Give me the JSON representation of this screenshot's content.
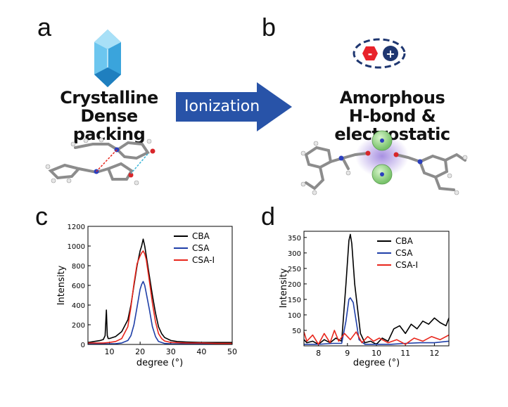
{
  "panel_labels": {
    "a": "a",
    "b": "b",
    "c": "c",
    "d": "d"
  },
  "panel_a": {
    "line1": "Crystalline",
    "line2": "Dense packing"
  },
  "arrow": {
    "label": "Ionization"
  },
  "panel_b": {
    "line1": "Amorphous",
    "line2": "H-bond & electrostatic",
    "anion_symbol": "-",
    "cation_symbol": "+"
  },
  "colors": {
    "CBA": "#000000",
    "CSA": "#1f3fa8",
    "CSA-I": "#e8261c",
    "arrow": "#2853a8",
    "crystal": "#3aa4dc",
    "anion": "#e8222a",
    "cation": "#1e3670"
  },
  "chart_data": [
    {
      "type": "line",
      "xlabel": "degree (°)",
      "ylabel": "Intensity",
      "xlim": [
        3,
        50
      ],
      "ylim": [
        0,
        1200
      ],
      "xticks": [
        10,
        20,
        30,
        40,
        50
      ],
      "yticks": [
        0,
        200,
        400,
        600,
        800,
        1000,
        1200
      ],
      "legend": "top-right",
      "series": [
        {
          "name": "CBA",
          "x": [
            3,
            5,
            7,
            8,
            8.6,
            9,
            9.3,
            9.6,
            10,
            12,
            14,
            16,
            17,
            18,
            19,
            20,
            20.5,
            21,
            21.5,
            22,
            23,
            24,
            25,
            26,
            27,
            28,
            30,
            32,
            35,
            40,
            45,
            50
          ],
          "y": [
            20,
            30,
            40,
            50,
            90,
            350,
            90,
            60,
            60,
            80,
            130,
            250,
            400,
            600,
            800,
            950,
            1000,
            1070,
            1000,
            900,
            700,
            500,
            320,
            180,
            110,
            70,
            40,
            30,
            25,
            20,
            20,
            20
          ]
        },
        {
          "name": "CSA",
          "x": [
            3,
            8,
            12,
            14,
            16,
            17,
            18,
            19,
            20,
            20.5,
            21,
            21.5,
            22,
            23,
            24,
            25,
            26,
            28,
            30,
            35,
            40,
            50
          ],
          "y": [
            5,
            5,
            8,
            15,
            40,
            90,
            200,
            380,
            560,
            610,
            640,
            600,
            520,
            360,
            180,
            80,
            30,
            10,
            6,
            5,
            5,
            5
          ]
        },
        {
          "name": "CSA-I",
          "x": [
            3,
            5,
            8,
            10,
            12,
            14,
            16,
            17,
            18,
            19,
            20,
            20.5,
            21,
            21.5,
            22,
            23,
            24,
            25,
            26,
            27,
            28,
            30,
            35,
            40,
            45,
            50
          ],
          "y": [
            15,
            15,
            15,
            20,
            30,
            60,
            180,
            380,
            620,
            820,
            900,
            930,
            950,
            920,
            860,
            650,
            420,
            230,
            110,
            60,
            35,
            20,
            15,
            15,
            10,
            10
          ]
        }
      ]
    },
    {
      "type": "line",
      "xlabel": "degree (°)",
      "ylabel": "Intensity",
      "xlim": [
        7.5,
        12.5
      ],
      "ylim": [
        0,
        370
      ],
      "xticks": [
        8,
        9,
        10,
        11,
        12
      ],
      "yticks": [
        50,
        100,
        150,
        200,
        250,
        300,
        350
      ],
      "legend": "top-right",
      "series": [
        {
          "name": "CBA",
          "x": [
            7.5,
            7.6,
            7.8,
            8,
            8.2,
            8.4,
            8.6,
            8.8,
            8.95,
            9.05,
            9.1,
            9.15,
            9.25,
            9.35,
            9.45,
            9.6,
            9.8,
            10,
            10.2,
            10.4,
            10.6,
            10.8,
            11,
            11.2,
            11.4,
            11.6,
            11.8,
            12,
            12.2,
            12.4,
            12.5
          ],
          "y": [
            20,
            10,
            15,
            5,
            20,
            10,
            25,
            15,
            200,
            340,
            360,
            330,
            200,
            120,
            40,
            10,
            15,
            5,
            25,
            15,
            55,
            65,
            40,
            70,
            55,
            80,
            70,
            90,
            75,
            65,
            90
          ]
        },
        {
          "name": "CSA",
          "x": [
            7.5,
            8,
            8.5,
            8.8,
            8.95,
            9.05,
            9.1,
            9.2,
            9.3,
            9.4,
            9.6,
            10,
            10.5,
            11,
            11.5,
            12,
            12.5
          ],
          "y": [
            5,
            5,
            8,
            8,
            80,
            150,
            155,
            140,
            80,
            20,
            5,
            5,
            5,
            8,
            10,
            10,
            15
          ]
        },
        {
          "name": "CSA-I",
          "x": [
            7.5,
            7.6,
            7.8,
            8,
            8.2,
            8.4,
            8.55,
            8.7,
            8.9,
            9.1,
            9.3,
            9.5,
            9.7,
            9.9,
            10.1,
            10.4,
            10.7,
            11,
            11.3,
            11.6,
            11.9,
            12.2,
            12.5
          ],
          "y": [
            45,
            15,
            35,
            5,
            40,
            10,
            50,
            15,
            40,
            20,
            45,
            10,
            30,
            15,
            25,
            10,
            20,
            5,
            25,
            15,
            30,
            20,
            35
          ]
        }
      ]
    }
  ]
}
